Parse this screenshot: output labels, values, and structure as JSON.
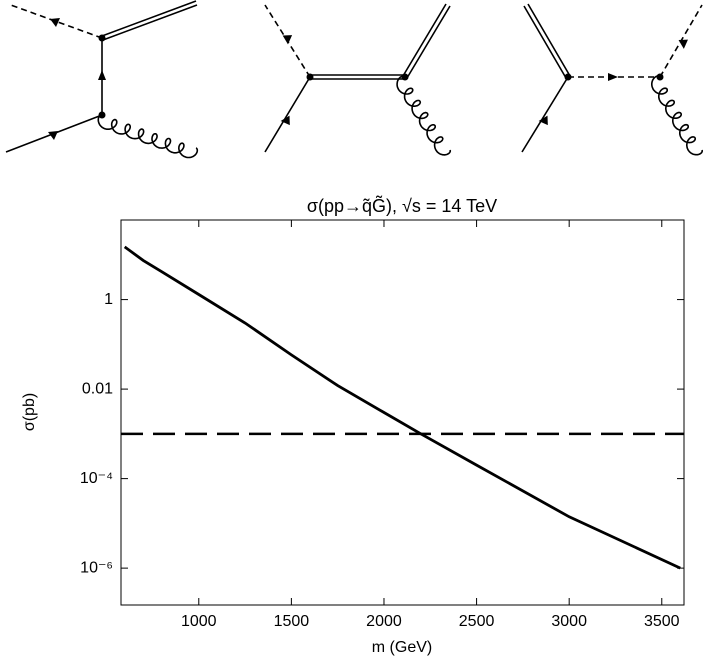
{
  "chart_data": {
    "type": "line",
    "title": "σ(pp→q̃G̃), √s = 14 TeV",
    "x_label": "m (GeV)",
    "y_label": "σ(pb)",
    "x": [
      600,
      700,
      800,
      1000,
      1250,
      1500,
      1750,
      2000,
      2200,
      2500,
      3000,
      3600
    ],
    "series": [
      {
        "color": "#000000",
        "values": [
          15,
          7.5,
          4.2,
          1.3,
          0.3,
          0.058,
          0.012,
          0.003,
          0.001,
          0.0002,
          1.4e-05,
          1e-06
        ]
      }
    ],
    "reference_line": 0.001,
    "xlim": [
      580,
      3620
    ],
    "ylim": [
      1.5e-07,
      60
    ],
    "log_y": true,
    "xticks": [
      1000,
      1500,
      2000,
      2500,
      3000,
      3500
    ],
    "yticks": [
      1,
      0.01,
      {
        "value": 0.0001,
        "label": "10⁻⁴"
      },
      {
        "value": 1e-06,
        "label": "10⁻⁶"
      }
    ]
  }
}
